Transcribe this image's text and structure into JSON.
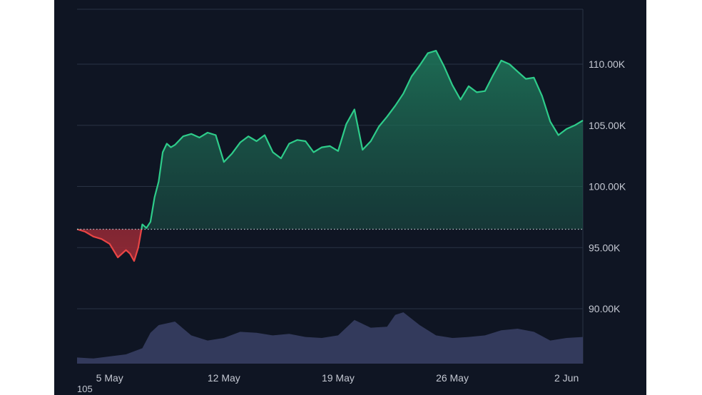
{
  "colors": {
    "panel_bg": "#0f1523",
    "grid": "#2a3344",
    "up_line": "#2ecc8a",
    "down_line": "#e84545",
    "up_fill": "#1e6e55",
    "down_fill": "#8a2a35",
    "volume": "#3a4166",
    "baseline": "#bcc2cc",
    "text": "#c4c8d2"
  },
  "footer": {
    "label": "105"
  },
  "chart_data": {
    "type": "area",
    "title": "",
    "xlabel": "",
    "ylabel": "",
    "grid": "horizontal",
    "baseline": 96500,
    "ylim": [
      87800,
      114500
    ],
    "xlim": [
      "2025-05-03",
      "2025-06-03"
    ],
    "y_ticks": [
      {
        "value": 90000,
        "label": "90.00K"
      },
      {
        "value": 95000,
        "label": "95.00K"
      },
      {
        "value": 100000,
        "label": "100.00K"
      },
      {
        "value": 105000,
        "label": "105.00K"
      },
      {
        "value": 110000,
        "label": "110.00K"
      }
    ],
    "x_ticks": [
      {
        "value": "2025-05-05",
        "label": "5 May"
      },
      {
        "value": "2025-05-12",
        "label": "12 May"
      },
      {
        "value": "2025-05-19",
        "label": "19 May"
      },
      {
        "value": "2025-05-26",
        "label": "26 May"
      },
      {
        "value": "2025-06-02",
        "label": "2 Jun"
      }
    ],
    "series": [
      {
        "x": [
          "2025-05-03 00:00",
          "2025-05-03 12:00",
          "2025-05-04 00:00",
          "2025-05-04 12:00",
          "2025-05-05 00:00",
          "2025-05-05 12:00",
          "2025-05-06 00:00",
          "2025-05-06 06:00",
          "2025-05-06 12:00",
          "2025-05-06 18:00",
          "2025-05-07 00:00",
          "2025-05-07 06:00",
          "2025-05-07 12:00",
          "2025-05-07 18:00",
          "2025-05-08 00:00",
          "2025-05-08 06:00",
          "2025-05-08 12:00",
          "2025-05-08 18:00",
          "2025-05-09 00:00",
          "2025-05-09 12:00",
          "2025-05-10 00:00",
          "2025-05-10 12:00",
          "2025-05-11 00:00",
          "2025-05-11 12:00",
          "2025-05-12 00:00",
          "2025-05-12 12:00",
          "2025-05-13 00:00",
          "2025-05-13 12:00",
          "2025-05-14 00:00",
          "2025-05-14 12:00",
          "2025-05-15 00:00",
          "2025-05-15 12:00",
          "2025-05-16 00:00",
          "2025-05-16 12:00",
          "2025-05-17 00:00",
          "2025-05-17 12:00",
          "2025-05-18 00:00",
          "2025-05-18 12:00",
          "2025-05-19 00:00",
          "2025-05-19 12:00",
          "2025-05-20 00:00",
          "2025-05-20 12:00",
          "2025-05-21 00:00",
          "2025-05-21 12:00",
          "2025-05-22 00:00",
          "2025-05-22 12:00",
          "2025-05-23 00:00",
          "2025-05-23 12:00",
          "2025-05-24 00:00",
          "2025-05-24 12:00",
          "2025-05-25 00:00",
          "2025-05-25 12:00",
          "2025-05-26 00:00",
          "2025-05-26 12:00",
          "2025-05-27 00:00",
          "2025-05-27 12:00",
          "2025-05-28 00:00",
          "2025-05-28 12:00",
          "2025-05-29 00:00",
          "2025-05-29 12:00",
          "2025-05-30 00:00",
          "2025-05-30 12:00",
          "2025-05-31 00:00",
          "2025-05-31 12:00",
          "2025-06-01 00:00",
          "2025-06-01 12:00",
          "2025-06-02 00:00",
          "2025-06-02 12:00",
          "2025-06-03 00:00"
        ],
        "values": [
          96500,
          96300,
          95900,
          95700,
          95300,
          94200,
          94800,
          94500,
          93900,
          95000,
          96900,
          96600,
          97100,
          99100,
          100400,
          102800,
          103500,
          103200,
          103400,
          104100,
          104300,
          104000,
          104400,
          104200,
          102000,
          102700,
          103600,
          104100,
          103700,
          104200,
          102800,
          102300,
          103500,
          103800,
          103700,
          102800,
          103200,
          103300,
          102900,
          105100,
          106300,
          103000,
          103700,
          104900,
          105700,
          106600,
          107600,
          109000,
          109900,
          110900,
          111100,
          109800,
          108300,
          107100,
          108200,
          107700,
          107800,
          109100,
          110300,
          110000,
          109400,
          108800,
          108900,
          107400,
          105300,
          104200,
          104700,
          105000,
          105400
        ]
      }
    ],
    "volume": {
      "x": [
        "2025-05-03",
        "2025-05-04",
        "2025-05-05",
        "2025-05-06",
        "2025-05-07",
        "2025-05-07 12:00",
        "2025-05-08",
        "2025-05-09",
        "2025-05-10",
        "2025-05-11",
        "2025-05-12",
        "2025-05-13",
        "2025-05-14",
        "2025-05-15",
        "2025-05-16",
        "2025-05-17",
        "2025-05-18",
        "2025-05-19",
        "2025-05-20",
        "2025-05-21",
        "2025-05-22",
        "2025-05-22 12:00",
        "2025-05-23",
        "2025-05-24",
        "2025-05-25",
        "2025-05-26",
        "2025-05-27",
        "2025-05-28",
        "2025-05-29",
        "2025-05-30",
        "2025-05-31",
        "2025-06-01",
        "2025-06-02",
        "2025-06-03"
      ],
      "values": [
        0.12,
        0.1,
        0.14,
        0.18,
        0.3,
        0.6,
        0.75,
        0.82,
        0.55,
        0.45,
        0.5,
        0.62,
        0.6,
        0.55,
        0.58,
        0.52,
        0.5,
        0.55,
        0.85,
        0.7,
        0.72,
        0.95,
        1.0,
        0.75,
        0.55,
        0.5,
        0.52,
        0.55,
        0.65,
        0.68,
        0.62,
        0.45,
        0.5,
        0.52
      ]
    }
  }
}
